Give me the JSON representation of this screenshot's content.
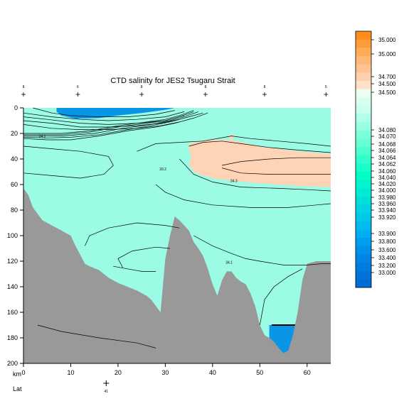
{
  "chart_data": {
    "type": "heatmap",
    "title": "CTD salinity for JES2 Tsugaru Strait",
    "xlabel": "km",
    "lat_label": "Lat",
    "lat_ticks": [
      {
        "km": 17.5,
        "label": "41"
      }
    ],
    "xlim": [
      0,
      65
    ],
    "ylim": [
      200,
      0
    ],
    "x_ticks": [
      0,
      10,
      20,
      30,
      40,
      50,
      60
    ],
    "y_ticks": [
      0,
      20,
      40,
      60,
      80,
      100,
      120,
      140,
      160,
      180,
      200
    ],
    "stations": [
      {
        "km": 0,
        "label": "8"
      },
      {
        "km": 11.5,
        "label": "6"
      },
      {
        "km": 25,
        "label": "8"
      },
      {
        "km": 38.5,
        "label": "8"
      },
      {
        "km": 51,
        "label": "8"
      },
      {
        "km": 64,
        "label": "5"
      }
    ],
    "contour_labels": [
      {
        "text": "34.1",
        "km": 4,
        "depth": 23
      },
      {
        "text": "33.2",
        "km": 29.5,
        "depth": 49
      },
      {
        "text": "34.3",
        "km": 44.5,
        "depth": 58
      },
      {
        "text": "34.1",
        "km": 43.5,
        "depth": 122
      }
    ],
    "bathymetry": [
      [
        0,
        63
      ],
      [
        1,
        68
      ],
      [
        2,
        78
      ],
      [
        4,
        88
      ],
      [
        6,
        92
      ],
      [
        8,
        96
      ],
      [
        10,
        100
      ],
      [
        11,
        108
      ],
      [
        12,
        115
      ],
      [
        13,
        122
      ],
      [
        14,
        124
      ],
      [
        16,
        127
      ],
      [
        18,
        133
      ],
      [
        20,
        137
      ],
      [
        22,
        140
      ],
      [
        24,
        143
      ],
      [
        26,
        147
      ],
      [
        27,
        150
      ],
      [
        28,
        155
      ],
      [
        29,
        160
      ],
      [
        30,
        118
      ],
      [
        31,
        100
      ],
      [
        32,
        85
      ],
      [
        33,
        88
      ],
      [
        34,
        92
      ],
      [
        35,
        96
      ],
      [
        36,
        105
      ],
      [
        37,
        110
      ],
      [
        38,
        116
      ],
      [
        39,
        126
      ],
      [
        40,
        138
      ],
      [
        41,
        147
      ],
      [
        42,
        135
      ],
      [
        43,
        128
      ],
      [
        44,
        128
      ],
      [
        45,
        133
      ],
      [
        46,
        136
      ],
      [
        47,
        138
      ],
      [
        48,
        145
      ],
      [
        49,
        155
      ],
      [
        50,
        170
      ],
      [
        51,
        178
      ],
      [
        52,
        180
      ],
      [
        53,
        183
      ],
      [
        54,
        188
      ],
      [
        55,
        192
      ],
      [
        56,
        190
      ],
      [
        57,
        178
      ],
      [
        58,
        160
      ],
      [
        59,
        135
      ],
      [
        60,
        122
      ],
      [
        61,
        121
      ],
      [
        62,
        120
      ],
      [
        63,
        120
      ],
      [
        64,
        120
      ],
      [
        65,
        120
      ]
    ],
    "colorbar": {
      "levels": [
        "35.000",
        "35.000",
        "34.700",
        "34.500",
        "34.500",
        "34.080",
        "34.070",
        "34.068",
        "34.066",
        "34.064",
        "34.062",
        "34.060",
        "34.040",
        "34.020",
        "34.000",
        "33.980",
        "33.960",
        "33.940",
        "33.920",
        "33.900",
        "33.800",
        "33.600",
        "33.400",
        "33.200",
        "33.000"
      ],
      "colors": [
        "#ff8c1a",
        "#ff9c3a",
        "#ffab58",
        "#ffb774",
        "#ffc290",
        "#ffd0ad",
        "#ffe1c8",
        "#eafff2",
        "#d9fff0",
        "#c8ffee",
        "#b0ffe9",
        "#99ffe3",
        "#7dffda",
        "#66ffd4",
        "#4dffcf",
        "#33ffcc",
        "#1affc9",
        "#00ffc6",
        "#00f5cc",
        "#00ebd4",
        "#00dfdb",
        "#00d4e2",
        "#00c8e8",
        "#00bbee",
        "#00aef2",
        "#009ef0",
        "#0090ec",
        "#0084e6",
        "#007ce0",
        "#0074db",
        "#006dd6"
      ],
      "text_colors_note": "palette"
    },
    "water_color": "#9bfbe4",
    "seabed_color": "#999999",
    "fresh_color": "#0a96e6",
    "warm_color": "#ffd3b5"
  }
}
